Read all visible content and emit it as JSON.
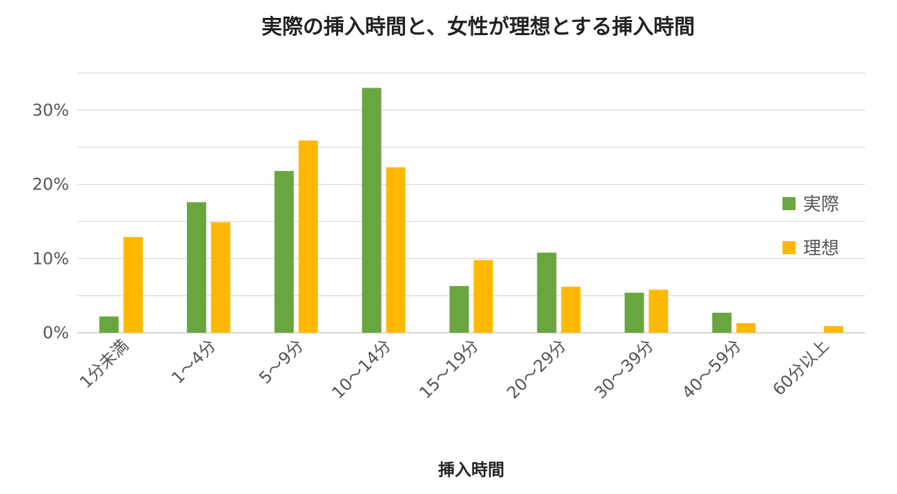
{
  "chart_data": {
    "type": "bar",
    "title": "実際の挿入時間と、女性が理想とする挿入時間",
    "xlabel": "挿入時間",
    "ylabel": "",
    "ylim": [
      0,
      35
    ],
    "ytick_values": [
      0,
      10,
      20,
      30
    ],
    "ytick_labels": [
      "0%",
      "10%",
      "20%",
      "30%"
    ],
    "grid_values": [
      0,
      5,
      10,
      15,
      20,
      25,
      30,
      35
    ],
    "grid": true,
    "legend_position": "right",
    "categories": [
      "1分未満",
      "1～4分",
      "5～9分",
      "10～14分",
      "15～19分",
      "20～29分",
      "30～39分",
      "40～59分",
      "60分以上"
    ],
    "series": [
      {
        "name": "実際",
        "color": "#6aa640",
        "values": [
          2.2,
          17.6,
          21.8,
          33.0,
          6.3,
          10.8,
          5.4,
          2.7,
          0
        ]
      },
      {
        "name": "理想",
        "color": "#ffb800",
        "values": [
          12.9,
          14.9,
          25.9,
          22.3,
          9.8,
          6.2,
          5.8,
          1.3,
          0.9
        ]
      }
    ]
  }
}
